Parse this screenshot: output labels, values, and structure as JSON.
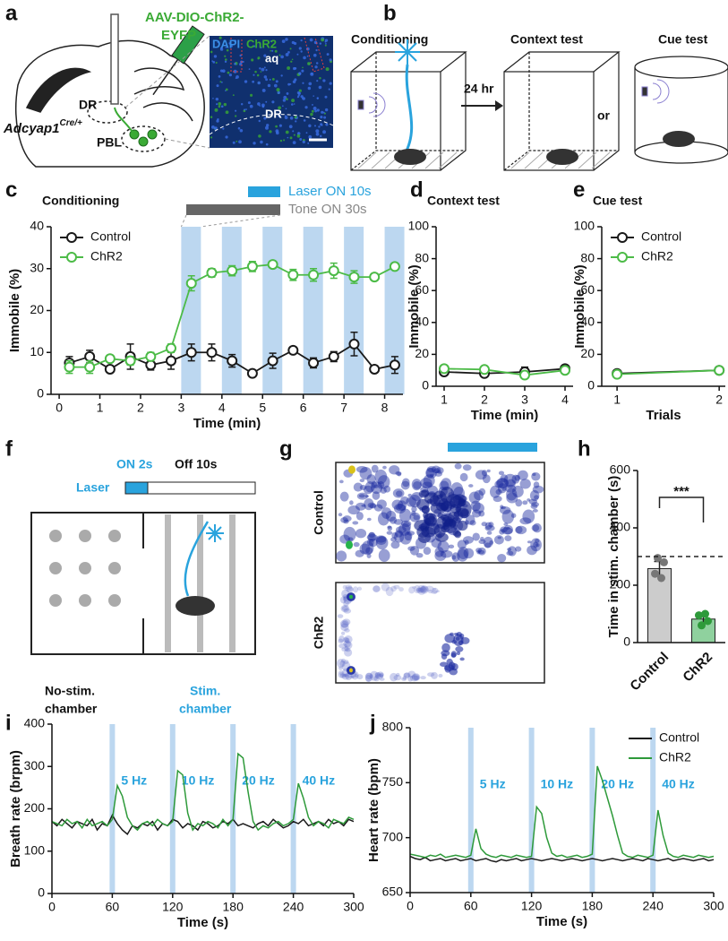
{
  "panel_labels": [
    "a",
    "b",
    "c",
    "d",
    "e",
    "f",
    "g",
    "h",
    "i",
    "j"
  ],
  "panel_a": {
    "construct": [
      "AAV-DIO-ChR2-",
      "EYFP"
    ],
    "region_dr": "DR",
    "region_pbl": "PBL",
    "genotype": "Adcyap1",
    "genotype_sup": "Cre/+",
    "stain_dapi": "DAPI",
    "stain_chr2": "ChR2",
    "aq": "aq",
    "image_dr": "DR"
  },
  "panel_b": {
    "stages": [
      "Conditioning",
      "Context test",
      "Cue test"
    ],
    "interval": "24 hr",
    "or": "or"
  },
  "panel_f": {
    "on": "ON 2s",
    "off": "Off 10s",
    "laser": "Laser",
    "no_stim": [
      "No-stim.",
      "chamber"
    ],
    "stim": [
      "Stim.",
      "chamber"
    ]
  },
  "panel_g": {
    "rows": [
      "Control",
      "ChR2"
    ]
  },
  "chart_data": [
    {
      "type": "line",
      "title": "Conditioning",
      "xlabel": "Time (min)",
      "ylabel": "Immobile (%)",
      "x": [
        0.25,
        0.75,
        1.25,
        1.75,
        2.25,
        2.75,
        3.25,
        3.75,
        4.25,
        4.75,
        5.25,
        5.75,
        6.25,
        6.75,
        7.25,
        7.75,
        8.25
      ],
      "series": [
        {
          "name": "Control",
          "color": "#1a1a1a",
          "values": [
            7.5,
            9,
            6,
            9,
            7,
            8,
            10,
            10,
            8,
            5,
            8,
            10.5,
            7.5,
            9,
            12,
            6,
            7
          ],
          "errors": [
            1.5,
            1.5,
            0.8,
            3,
            1.2,
            2,
            2,
            2,
            1.5,
            0.8,
            1.8,
            0.8,
            1.2,
            1.2,
            2.8,
            0.8,
            2
          ]
        },
        {
          "name": "ChR2",
          "color": "#4cbb47",
          "values": [
            6.5,
            6.5,
            8.5,
            8,
            9,
            11,
            26.5,
            29,
            29.5,
            30.5,
            31,
            28.5,
            28.5,
            29.5,
            28,
            28,
            30.5
          ],
          "errors": [
            1.5,
            1.5,
            0.8,
            1,
            1,
            1,
            1.8,
            1,
            1.2,
            1.2,
            0.5,
            1.3,
            1.5,
            1.8,
            1.5,
            0.8,
            0.5
          ]
        }
      ],
      "markers": true,
      "laser_on": [
        3,
        4,
        5,
        6,
        7,
        8
      ],
      "annotations": [
        "Laser ON 10s",
        "Tone ON 30s"
      ],
      "xlim": [
        -0.2,
        8.45
      ],
      "xticks": [
        0,
        1,
        2,
        3,
        4,
        5,
        6,
        7,
        8
      ],
      "ylim": [
        0,
        40
      ],
      "yticks": [
        0,
        10,
        20,
        30,
        40
      ],
      "legend": "upper left"
    },
    {
      "type": "line",
      "title": "Context test",
      "xlabel": "Time (min)",
      "ylabel": "Immobile (%)",
      "x": [
        1,
        2,
        3,
        4
      ],
      "series": [
        {
          "name": "Control",
          "color": "#1a1a1a",
          "values": [
            9,
            8,
            9,
            11
          ],
          "errors": [
            1.5,
            1,
            3,
            1.5
          ]
        },
        {
          "name": "ChR2",
          "color": "#4cbb47",
          "values": [
            11,
            10.5,
            7,
            10
          ],
          "errors": [
            1.5,
            1,
            2,
            1.5
          ]
        }
      ],
      "markers": true,
      "xlim": [
        0.8,
        4.2
      ],
      "xticks": [
        1,
        2,
        3,
        4
      ],
      "ylim": [
        0,
        100
      ],
      "yticks": [
        0,
        20,
        40,
        60,
        80,
        100
      ]
    },
    {
      "type": "line",
      "title": "Cue test",
      "xlabel": "Trials",
      "ylabel": "Immobile (%)",
      "x": [
        1,
        2
      ],
      "series": [
        {
          "name": "Control",
          "color": "#1a1a1a",
          "values": [
            8,
            10
          ],
          "errors": [
            1,
            1
          ]
        },
        {
          "name": "ChR2",
          "color": "#4cbb47",
          "values": [
            7.5,
            10
          ],
          "errors": [
            1,
            1
          ]
        }
      ],
      "markers": true,
      "xlim": [
        0.85,
        2.06
      ],
      "xticks": [
        1,
        2
      ],
      "ylim": [
        0,
        100
      ],
      "yticks": [
        0,
        20,
        40,
        60,
        80,
        100
      ],
      "legend": "upper left"
    },
    {
      "type": "bar",
      "ylabel": "Time in stim. chamber (s)",
      "categories": [
        "Control",
        "ChR2"
      ],
      "values": [
        258,
        82
      ],
      "errors": [
        25,
        15
      ],
      "colors": [
        "#cccccc",
        "#8fd19e"
      ],
      "point_colors": [
        "#777777",
        "#2e9a3a"
      ],
      "points": [
        [
          240,
          280,
          295,
          225
        ],
        [
          95,
          75,
          60,
          100
        ]
      ],
      "reference_line": 300,
      "significance": "***",
      "ylim": [
        0,
        600
      ],
      "yticks": [
        0,
        200,
        400,
        600
      ]
    },
    {
      "type": "line",
      "xlabel": "Time (s)",
      "ylabel": "Breath rate (brpm)",
      "x": [
        0,
        5,
        10,
        15,
        20,
        25,
        30,
        35,
        40,
        45,
        50,
        55,
        60,
        65,
        70,
        75,
        80,
        85,
        90,
        95,
        100,
        105,
        110,
        115,
        120,
        125,
        130,
        135,
        140,
        145,
        150,
        155,
        160,
        165,
        170,
        175,
        180,
        185,
        190,
        195,
        200,
        205,
        210,
        215,
        220,
        225,
        230,
        235,
        240,
        245,
        250,
        255,
        260,
        265,
        270,
        275,
        280,
        285,
        290,
        295,
        300
      ],
      "series": [
        {
          "name": "Control",
          "color": "#1a1a1a",
          "values": [
            170,
            160,
            175,
            165,
            155,
            170,
            165,
            160,
            175,
            150,
            165,
            160,
            185,
            165,
            150,
            140,
            160,
            155,
            165,
            160,
            170,
            150,
            165,
            160,
            175,
            170,
            155,
            165,
            160,
            150,
            170,
            165,
            155,
            160,
            170,
            165,
            175,
            160,
            165,
            160,
            155,
            165,
            170,
            160,
            175,
            165,
            155,
            160,
            170,
            165,
            175,
            160,
            165,
            170,
            160,
            175,
            165,
            170,
            160,
            175,
            170
          ]
        },
        {
          "name": "ChR2",
          "color": "#2e9a3a",
          "values": [
            170,
            165,
            160,
            175,
            165,
            170,
            155,
            175,
            160,
            165,
            170,
            160,
            175,
            255,
            230,
            180,
            160,
            150,
            165,
            170,
            160,
            175,
            165,
            160,
            170,
            290,
            280,
            190,
            150,
            165,
            160,
            170,
            165,
            155,
            175,
            160,
            175,
            330,
            320,
            240,
            170,
            150,
            160,
            155,
            165,
            170,
            160,
            165,
            175,
            260,
            225,
            180,
            160,
            170,
            165,
            155,
            175,
            170,
            165,
            180,
            175
          ]
        }
      ],
      "stim_times": [
        60,
        120,
        180,
        240
      ],
      "stim_labels": [
        "5 Hz",
        "10 Hz",
        "20 Hz",
        "40 Hz"
      ],
      "xlim": [
        0,
        300
      ],
      "xticks": [
        0,
        60,
        120,
        180,
        240,
        300
      ],
      "ylim": [
        0,
        400
      ],
      "yticks": [
        0,
        100,
        200,
        300,
        400
      ]
    },
    {
      "type": "line",
      "xlabel": "Time (s)",
      "ylabel": "Heart rate (bpm)",
      "x": [
        0,
        5,
        10,
        15,
        20,
        25,
        30,
        35,
        40,
        45,
        50,
        55,
        60,
        65,
        70,
        75,
        80,
        85,
        90,
        95,
        100,
        105,
        110,
        115,
        120,
        125,
        130,
        135,
        140,
        145,
        150,
        155,
        160,
        165,
        170,
        175,
        180,
        185,
        190,
        195,
        200,
        205,
        210,
        215,
        220,
        225,
        230,
        235,
        240,
        245,
        250,
        255,
        260,
        265,
        270,
        275,
        280,
        285,
        290,
        295,
        300
      ],
      "series": [
        {
          "name": "Control",
          "color": "#1a1a1a",
          "values": [
            683,
            681,
            680,
            682,
            679,
            680,
            681,
            679,
            680,
            681,
            679,
            680,
            681,
            679,
            680,
            681,
            679,
            678,
            680,
            679,
            680,
            681,
            679,
            680,
            681,
            680,
            679,
            680,
            681,
            680,
            679,
            680,
            681,
            680,
            679,
            680,
            681,
            680,
            679,
            680,
            681,
            680,
            679,
            680,
            681,
            680,
            679,
            681,
            680,
            679,
            680,
            681,
            679,
            680,
            681,
            680,
            679,
            680,
            681,
            679,
            680
          ]
        },
        {
          "name": "ChR2",
          "color": "#2e9a3a",
          "values": [
            685,
            684,
            683,
            682,
            684,
            683,
            685,
            682,
            683,
            684,
            683,
            682,
            684,
            708,
            690,
            685,
            683,
            682,
            684,
            683,
            682,
            684,
            683,
            682,
            683,
            728,
            722,
            700,
            686,
            683,
            684,
            682,
            683,
            684,
            682,
            683,
            685,
            765,
            752,
            736,
            720,
            702,
            686,
            683,
            682,
            684,
            683,
            682,
            684,
            725,
            702,
            686,
            683,
            682,
            684,
            683,
            682,
            684,
            683,
            682,
            683
          ]
        }
      ],
      "stim_times": [
        60,
        120,
        180,
        240
      ],
      "stim_labels": [
        "5 Hz",
        "10 Hz",
        "20 Hz",
        "40 Hz"
      ],
      "xlim": [
        0,
        300
      ],
      "xticks": [
        0,
        60,
        120,
        180,
        240,
        300
      ],
      "ylim": [
        650,
        800
      ],
      "yticks": [
        650,
        700,
        750,
        800
      ],
      "legend": "upper right"
    }
  ]
}
